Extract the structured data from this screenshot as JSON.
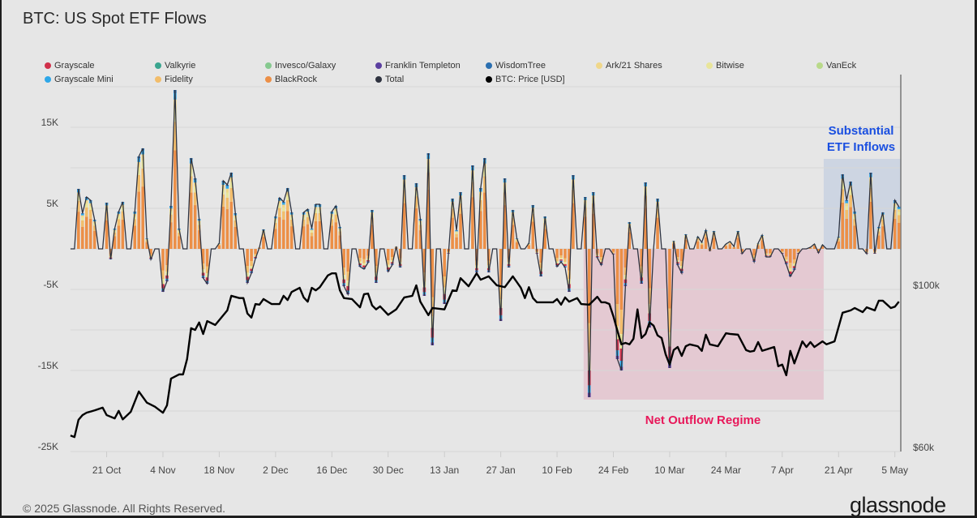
{
  "title": "BTC: US Spot ETF Flows",
  "footer": "© 2025 Glassnode. All Rights Reserved.",
  "logo": "glassnode",
  "legend": [
    {
      "label": "Grayscale",
      "color": "#d0304a"
    },
    {
      "label": "Valkyrie",
      "color": "#3aa58f"
    },
    {
      "label": "Invesco/Galaxy",
      "color": "#86c98f"
    },
    {
      "label": "Franklin Templeton",
      "color": "#5b3fa0"
    },
    {
      "label": "WisdomTree",
      "color": "#2b6fb0"
    },
    {
      "label": "Ark/21 Shares",
      "color": "#f0d78a"
    },
    {
      "label": "Bitwise",
      "color": "#e9e59a"
    },
    {
      "label": "VanEck",
      "color": "#b9d98a"
    },
    {
      "label": "Grayscale Mini",
      "color": "#2ea7e8"
    },
    {
      "label": "Fidelity",
      "color": "#f2bd6b"
    },
    {
      "label": "BlackRock",
      "color": "#ec8f47"
    },
    {
      "label": "Total",
      "color": "#2f3340"
    },
    {
      "label": "BTC: Price [USD]",
      "color": "#000000"
    }
  ],
  "chart_data": {
    "type": "bar",
    "title": "BTC: US Spot ETF Flows",
    "x_unit": "day index (0 = first day shown)",
    "x_ticks": [
      {
        "day": 9,
        "label": "21 Oct"
      },
      {
        "day": 23,
        "label": "4 Nov"
      },
      {
        "day": 37,
        "label": "18 Nov"
      },
      {
        "day": 51,
        "label": "2 Dec"
      },
      {
        "day": 65,
        "label": "16 Dec"
      },
      {
        "day": 79,
        "label": "30 Dec"
      },
      {
        "day": 93,
        "label": "13 Jan"
      },
      {
        "day": 107,
        "label": "27 Jan"
      },
      {
        "day": 121,
        "label": "10 Feb"
      },
      {
        "day": 135,
        "label": "24 Feb"
      },
      {
        "day": 149,
        "label": "10 Mar"
      },
      {
        "day": 163,
        "label": "24 Mar"
      },
      {
        "day": 177,
        "label": "7 Apr"
      },
      {
        "day": 191,
        "label": "21 Apr"
      },
      {
        "day": 205,
        "label": "5 May"
      }
    ],
    "y_left": {
      "unit": "K BTC",
      "range": [
        -25,
        20
      ],
      "ticks": [
        {
          "v": 15,
          "label": "15K"
        },
        {
          "v": 5,
          "label": "5K"
        },
        {
          "v": -5,
          "label": "-5K"
        },
        {
          "v": -15,
          "label": "-15K"
        },
        {
          "v": -25,
          "label": "-25K"
        }
      ],
      "grid_step": 5
    },
    "y_right": {
      "unit": "USD k",
      "scale": "log",
      "range": [
        60,
        100
      ],
      "ticks": [
        {
          "v": 100,
          "label": "$100k"
        },
        {
          "v": 60,
          "label": "$60k"
        }
      ]
    },
    "total_flows_k": [
      0,
      0,
      7.4,
      4.4,
      6.4,
      6,
      3.6,
      0,
      0,
      5.7,
      -1.3,
      2.5,
      4.6,
      5.8,
      0,
      0,
      4.6,
      11.4,
      12.4,
      1.3,
      -1.3,
      0,
      0,
      -5.3,
      -4,
      5.3,
      19.6,
      2.5,
      0,
      0,
      11.2,
      8.7,
      3.7,
      -3.6,
      -4.3,
      0,
      0,
      0.7,
      8.4,
      7.9,
      9.4,
      4.4,
      0,
      0,
      -4.2,
      -3,
      -1.2,
      0.2,
      2.4,
      0,
      0,
      4,
      6.3,
      5.8,
      7.5,
      4.5,
      0,
      0,
      4.5,
      4.9,
      2.5,
      5.5,
      5.5,
      0,
      0,
      4.6,
      5.3,
      2.7,
      -4.6,
      -5.6,
      0,
      0,
      -2.2,
      -2.5,
      -1.7,
      4.8,
      -4.2,
      0,
      0,
      -2.8,
      -2,
      0.3,
      -2.3,
      9.1,
      0,
      0,
      8.1,
      3.7,
      -5.8,
      11.8,
      -11.9,
      0,
      0,
      -6.8,
      -0.6,
      6.2,
      2.3,
      7,
      0,
      0,
      10.3,
      -2.9,
      7.5,
      11.2,
      -2.9,
      0,
      0,
      -8.9,
      8.7,
      -2.3,
      4.8,
      1.3,
      0,
      0,
      0.7,
      5.4,
      -0.6,
      -3.4,
      4,
      0,
      0,
      -2.2,
      -1.6,
      -2.3,
      -5.3,
      9.1,
      0,
      0,
      6.4,
      -18.3,
      7,
      -1.1,
      -2,
      0,
      0,
      -0.7,
      -13.6,
      -15,
      -4.6,
      3.3,
      0,
      0,
      -4.3,
      8.2,
      -9.7,
      0,
      6.2,
      0,
      0,
      -14.7,
      1,
      -2,
      -3,
      1.8,
      0,
      0,
      1.5,
      0.8,
      2.3,
      -0.3,
      2.2,
      0,
      0,
      0.6,
      0.9,
      0.3,
      2.2,
      -0.6,
      0,
      0,
      -1.6,
      0.7,
      1.7,
      -1,
      -1,
      0,
      0,
      -0.6,
      -1.9,
      -3.4,
      -2.6,
      -0.6,
      0,
      0,
      0.2,
      0.6,
      -0.5,
      0.5,
      0,
      0,
      0,
      1.5,
      9.2,
      6,
      8.3,
      4.6,
      0,
      0,
      -0.6,
      9.4,
      -0.6,
      2.7,
      4.5,
      0,
      0,
      6,
      5.2
    ],
    "stack_shares": {
      "inflow": [
        [
          "BlackRock",
          0.62
        ],
        [
          "Fidelity",
          0.18
        ],
        [
          "Bitwise",
          0.08
        ],
        [
          "Ark/21 Shares",
          0.06
        ],
        [
          "Grayscale Mini",
          0.04
        ],
        [
          "WisdomTree",
          0.02
        ]
      ],
      "outflow": [
        [
          "BlackRock",
          0.5
        ],
        [
          "Fidelity",
          0.2
        ],
        [
          "Bitwise",
          0.12
        ],
        [
          "Grayscale",
          0.1
        ],
        [
          "Grayscale Mini",
          0.05
        ],
        [
          "Franklin Templeton",
          0.03
        ]
      ]
    },
    "btc_price_k": [
      [
        0,
        63.1
      ],
      [
        1,
        62.8
      ],
      [
        2,
        66.3
      ],
      [
        3,
        67.3
      ],
      [
        4,
        67.8
      ],
      [
        6,
        68.3
      ],
      [
        8,
        68.9
      ],
      [
        9,
        67.3
      ],
      [
        11,
        66.6
      ],
      [
        12,
        68.2
      ],
      [
        13,
        66.4
      ],
      [
        15,
        68.0
      ],
      [
        17,
        72.5
      ],
      [
        19,
        70.0
      ],
      [
        21,
        69.1
      ],
      [
        23,
        67.8
      ],
      [
        24,
        69.4
      ],
      [
        25,
        75.5
      ],
      [
        27,
        76.5
      ],
      [
        28,
        76.5
      ],
      [
        29,
        80.3
      ],
      [
        30,
        88.5
      ],
      [
        31,
        88.0
      ],
      [
        32,
        90.1
      ],
      [
        33,
        86.9
      ],
      [
        34,
        90.5
      ],
      [
        36,
        89.4
      ],
      [
        39,
        93.6
      ],
      [
        40,
        98.0
      ],
      [
        42,
        97.3
      ],
      [
        43,
        97.3
      ],
      [
        44,
        92.7
      ],
      [
        45,
        91.5
      ],
      [
        46,
        95.5
      ],
      [
        47,
        95.3
      ],
      [
        48,
        97.0
      ],
      [
        50,
        95.5
      ],
      [
        52,
        95.5
      ],
      [
        53,
        98.0
      ],
      [
        54,
        96.7
      ],
      [
        55,
        99.2
      ],
      [
        57,
        100.5
      ],
      [
        58,
        97.5
      ],
      [
        59,
        96.2
      ],
      [
        60,
        100.5
      ],
      [
        61,
        99.7
      ],
      [
        62,
        100.7
      ],
      [
        64,
        104.5
      ],
      [
        65,
        105.2
      ],
      [
        66,
        105.2
      ],
      [
        67,
        99.7
      ],
      [
        68,
        97.3
      ],
      [
        70,
        97.0
      ],
      [
        72,
        94.5
      ],
      [
        73,
        98.5
      ],
      [
        74,
        98.7
      ],
      [
        75,
        95.1
      ],
      [
        76,
        93.9
      ],
      [
        77,
        94.8
      ],
      [
        79,
        92.3
      ],
      [
        81,
        93.9
      ],
      [
        83,
        97.5
      ],
      [
        85,
        98.0
      ],
      [
        86,
        101.3
      ],
      [
        87,
        96.2
      ],
      [
        89,
        92.2
      ],
      [
        90,
        94.3
      ],
      [
        93,
        93.9
      ],
      [
        95,
        99.7
      ],
      [
        96,
        99.5
      ],
      [
        97,
        103.6
      ],
      [
        99,
        101.0
      ],
      [
        101,
        105.2
      ],
      [
        102,
        103.1
      ],
      [
        104,
        104.2
      ],
      [
        106,
        101.3
      ],
      [
        108,
        100.7
      ],
      [
        110,
        104.2
      ],
      [
        112,
        100.5
      ],
      [
        113,
        97.3
      ],
      [
        114,
        100.7
      ],
      [
        115,
        97.3
      ],
      [
        116,
        96.0
      ],
      [
        120,
        96.0
      ],
      [
        121,
        97.0
      ],
      [
        122,
        95.3
      ],
      [
        123,
        97.5
      ],
      [
        124,
        96.2
      ],
      [
        126,
        97.3
      ],
      [
        127,
        95.5
      ],
      [
        129,
        95.3
      ],
      [
        131,
        97.7
      ],
      [
        132,
        96.0
      ],
      [
        133,
        96.0
      ],
      [
        134,
        95.5
      ],
      [
        135,
        91.9
      ],
      [
        136,
        87.8
      ],
      [
        137,
        84.1
      ],
      [
        138,
        84.5
      ],
      [
        139,
        84.1
      ],
      [
        140,
        85.6
      ],
      [
        141,
        93.9
      ],
      [
        142,
        85.8
      ],
      [
        143,
        86.9
      ],
      [
        144,
        90.1
      ],
      [
        145,
        89.2
      ],
      [
        146,
        86.5
      ],
      [
        147,
        85.8
      ],
      [
        148,
        81.5
      ],
      [
        149,
        78.9
      ],
      [
        150,
        82.6
      ],
      [
        151,
        83.4
      ],
      [
        152,
        81.1
      ],
      [
        153,
        83.6
      ],
      [
        154,
        84.1
      ],
      [
        156,
        83.6
      ],
      [
        157,
        82.4
      ],
      [
        158,
        86.7
      ],
      [
        159,
        84.1
      ],
      [
        161,
        83.6
      ],
      [
        163,
        87.1
      ],
      [
        164,
        86.9
      ],
      [
        166,
        86.7
      ],
      [
        168,
        82.6
      ],
      [
        169,
        82.2
      ],
      [
        170,
        82.4
      ],
      [
        171,
        84.7
      ],
      [
        172,
        82.4
      ],
      [
        175,
        83.4
      ],
      [
        176,
        78.5
      ],
      [
        177,
        78.9
      ],
      [
        178,
        76.3
      ],
      [
        179,
        82.4
      ],
      [
        180,
        79.2
      ],
      [
        182,
        84.9
      ],
      [
        183,
        83.4
      ],
      [
        184,
        84.7
      ],
      [
        185,
        83.4
      ],
      [
        187,
        84.9
      ],
      [
        188,
        84.1
      ],
      [
        190,
        84.9
      ],
      [
        192,
        92.9
      ],
      [
        194,
        93.6
      ],
      [
        195,
        94.3
      ],
      [
        197,
        93.1
      ],
      [
        198,
        94.5
      ],
      [
        200,
        93.6
      ],
      [
        201,
        96.5
      ],
      [
        202,
        96.5
      ],
      [
        204,
        94.3
      ],
      [
        205,
        94.7
      ],
      [
        206,
        96.2
      ]
    ],
    "annotations": [
      {
        "label": "Net Outflow Regime",
        "color": "#e8185a",
        "fill": "#e4c9d2",
        "day_range": [
          127.6,
          187.3
        ],
        "value_range": [
          -18.6,
          0
        ]
      },
      {
        "label_lines": [
          "Substantial",
          "ETF Inflows"
        ],
        "color": "#1a4fe0",
        "fill": "#cdd5e2",
        "day_range": [
          187.3,
          206.4
        ],
        "value_range": [
          0,
          11.1
        ]
      }
    ],
    "grid": true,
    "legend_position": "top"
  }
}
